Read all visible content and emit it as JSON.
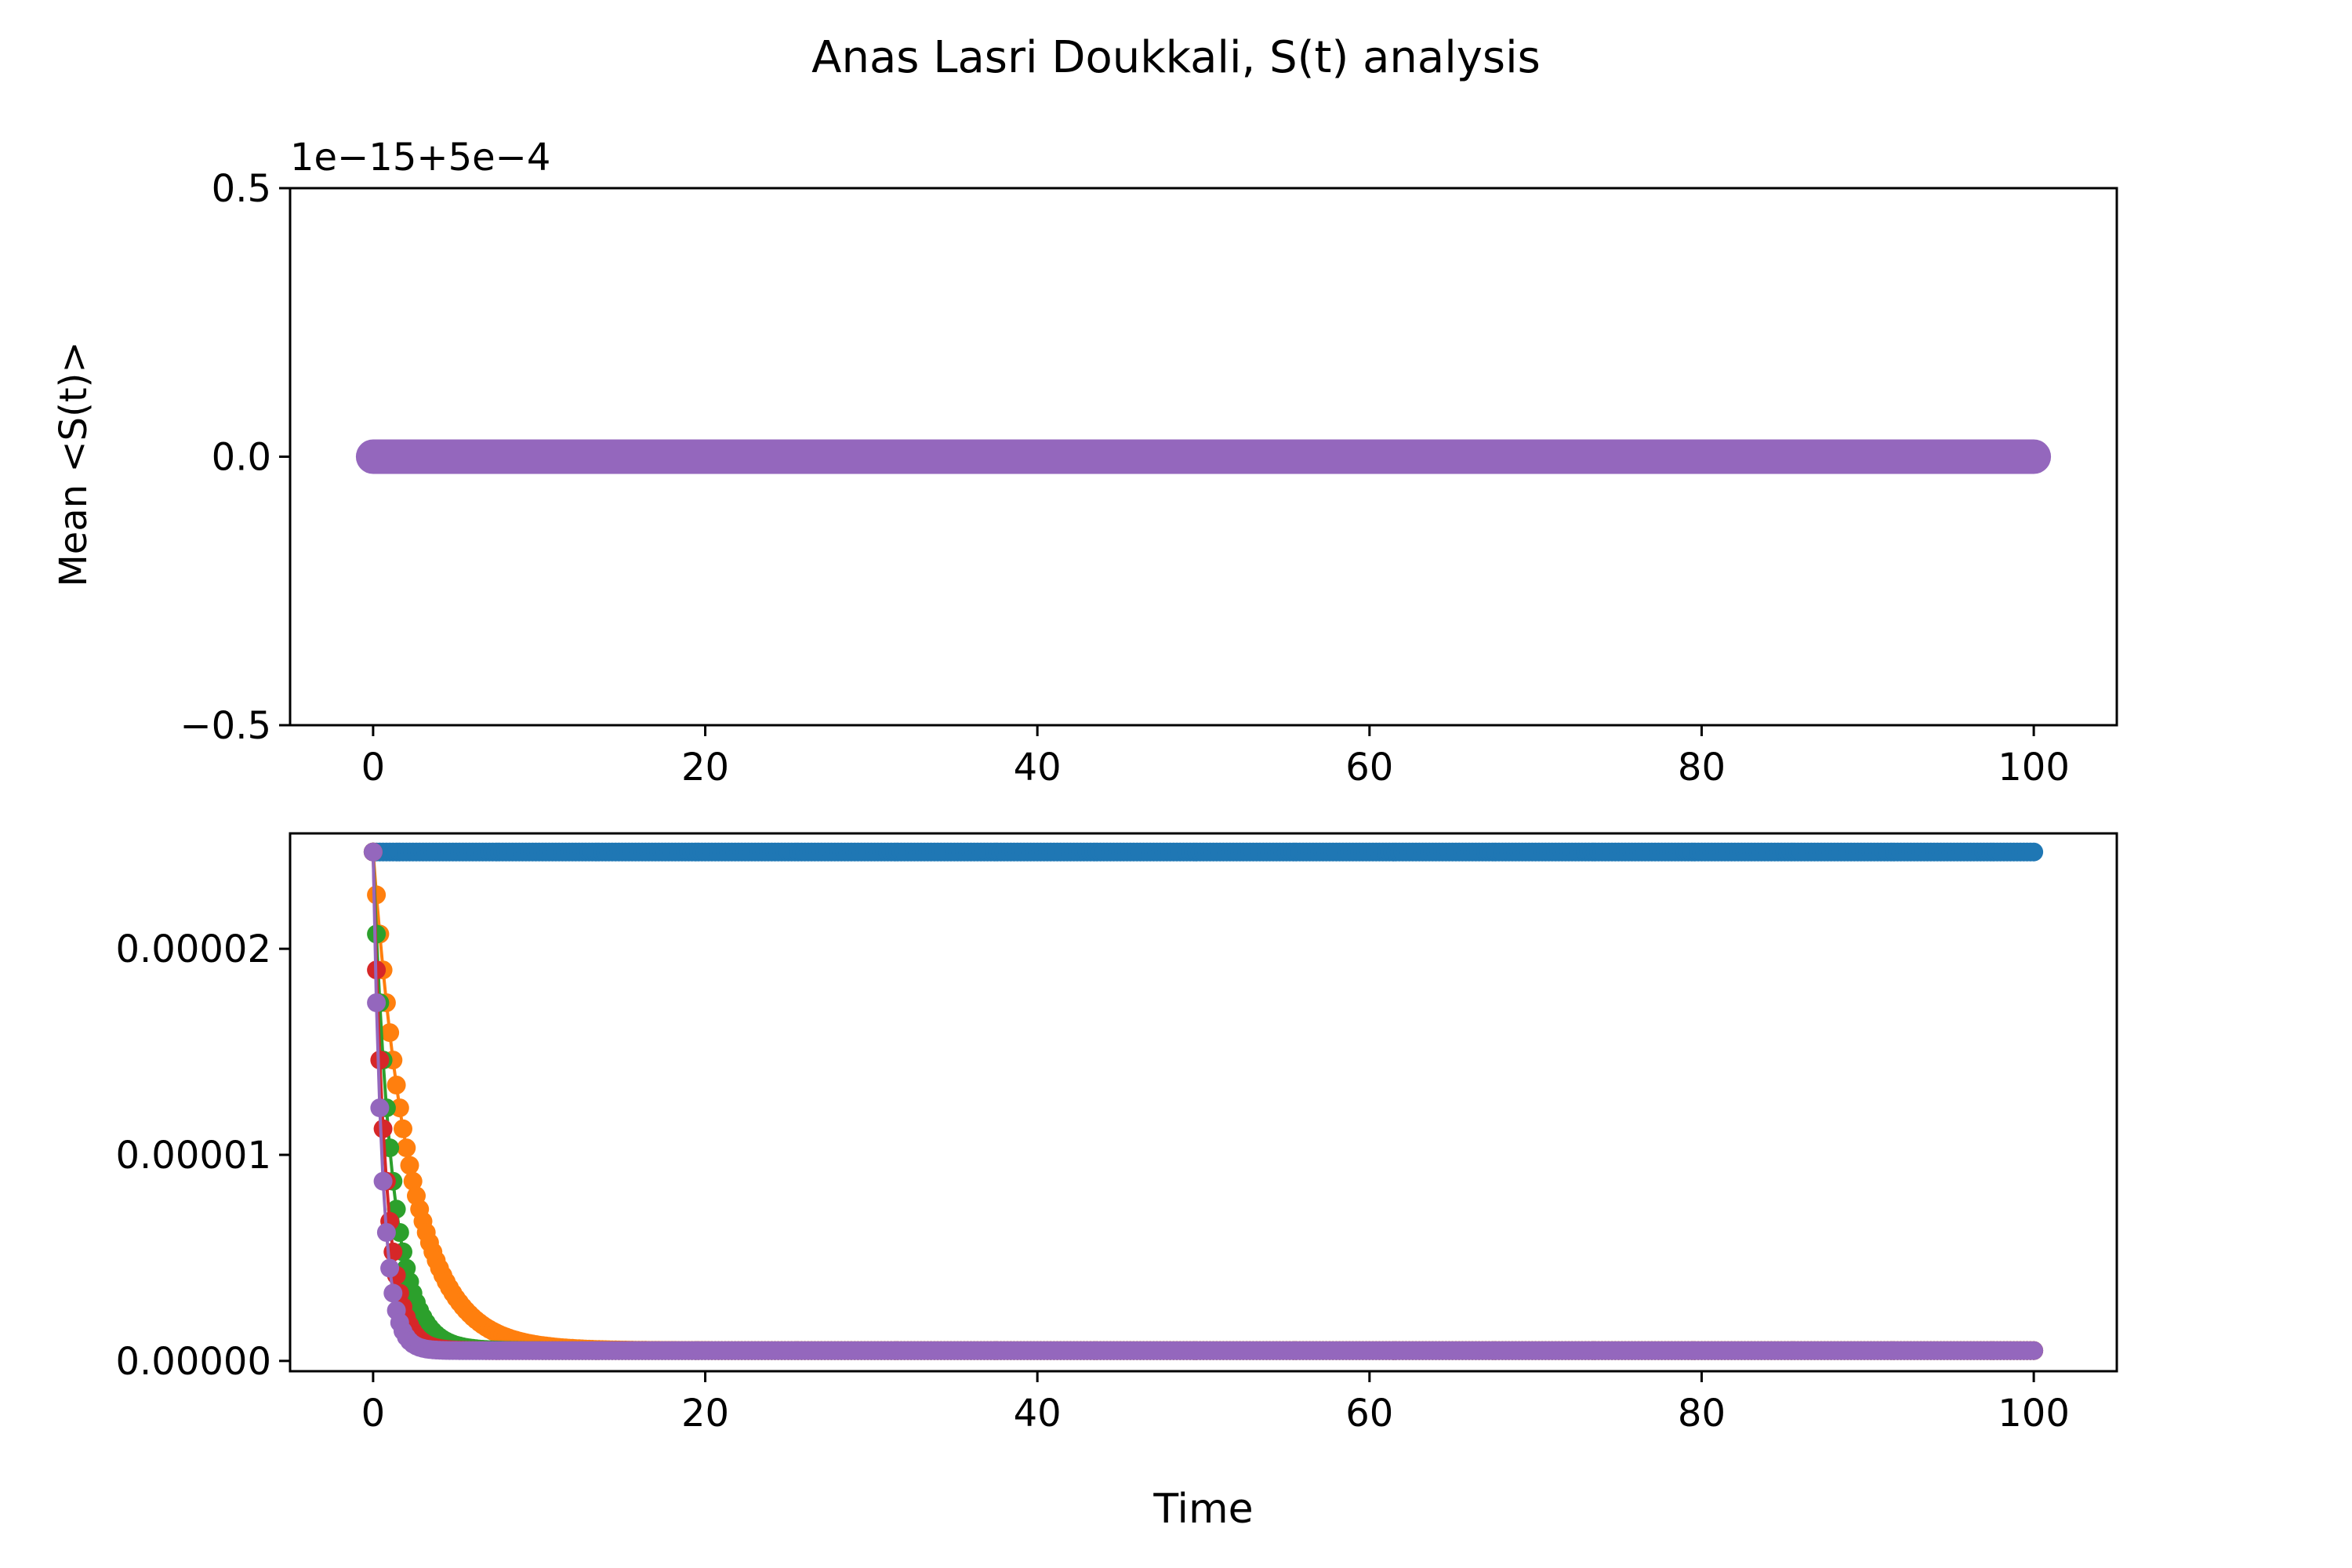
{
  "figure": {
    "title": "Anas Lasri Doukkali,  S(t) analysis"
  },
  "colors": {
    "blue": "#1f77b4",
    "orange": "#ff7f0e",
    "green": "#2ca02c",
    "red": "#d62728",
    "purple": "#9467bd"
  },
  "chart_data": [
    {
      "type": "scatter",
      "title": "",
      "xlabel": "",
      "ylabel": "Mean <S(t)>",
      "offset_label": "1e−15+5e−4",
      "xlim": [
        -5,
        105
      ],
      "ylim": [
        -0.5,
        0.5
      ],
      "x_ticks": [
        0,
        20,
        40,
        60,
        80,
        100
      ],
      "x_tick_labels": [
        "0",
        "20",
        "40",
        "60",
        "80",
        "100"
      ],
      "y_ticks": [
        -0.5,
        0.0,
        0.5
      ],
      "y_tick_labels": [
        "−0.5",
        "0.0",
        "0.5"
      ],
      "grid": false,
      "x_range": [
        0,
        100
      ],
      "series": [
        {
          "color": "#9467bd",
          "value": 0.0
        }
      ]
    },
    {
      "type": "line",
      "title": "",
      "xlabel": "Time",
      "ylabel": "",
      "xlim": [
        -5,
        105
      ],
      "ylim": [
        -5e-07,
        2.56e-05
      ],
      "x_ticks": [
        0,
        20,
        40,
        60,
        80,
        100
      ],
      "x_tick_labels": [
        "0",
        "20",
        "40",
        "60",
        "80",
        "100"
      ],
      "y_ticks": [
        0,
        1e-05,
        2e-05
      ],
      "y_tick_labels": [
        "0.00000",
        "0.00001",
        "0.00002"
      ],
      "grid": false,
      "x_range": [
        0,
        100
      ],
      "initial_value": 2.47e-05,
      "baseline": 5e-07,
      "series": [
        {
          "color": "#1f77b4",
          "decay_rate": 0.0
        },
        {
          "color": "#ff7f0e",
          "decay_rate": 0.45
        },
        {
          "color": "#2ca02c",
          "decay_rate": 0.9
        },
        {
          "color": "#d62728",
          "decay_rate": 1.35
        },
        {
          "color": "#9467bd",
          "decay_rate": 1.8
        }
      ]
    }
  ]
}
